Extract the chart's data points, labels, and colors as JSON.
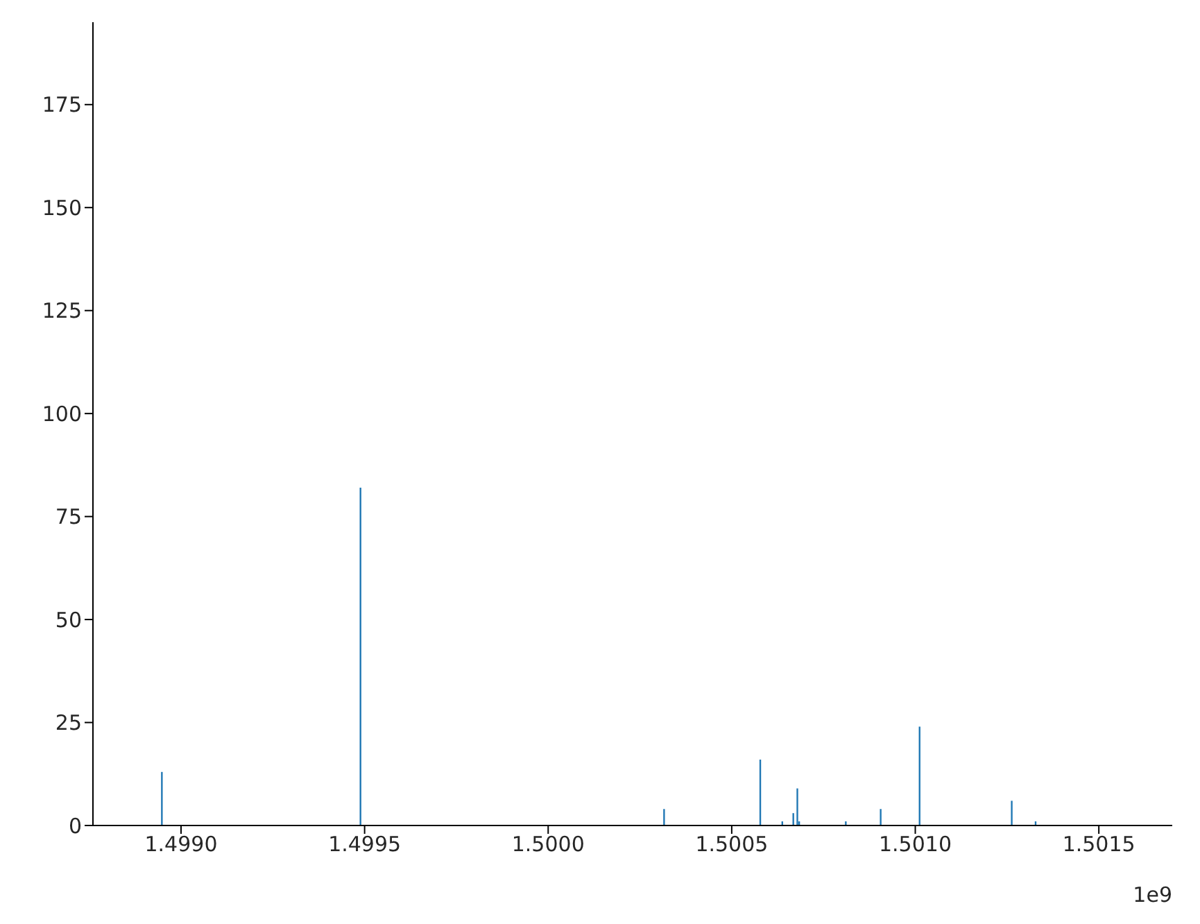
{
  "chart_data": {
    "type": "bar",
    "color": "#1f77b4",
    "x": [
      1.498948,
      1.499489,
      1.500316,
      1.500578,
      1.500638,
      1.500668,
      1.500679,
      1.500684,
      1.500811,
      1.500906,
      1.501012,
      1.501263,
      1.501328
    ],
    "values": [
      13,
      82,
      4,
      16,
      1,
      3,
      9,
      1,
      1,
      4,
      24,
      6,
      1
    ],
    "xlim": [
      1.49876,
      1.5017
    ],
    "xticks": [
      {
        "value": 1.499,
        "label": "1.4990"
      },
      {
        "value": 1.4995,
        "label": "1.4995"
      },
      {
        "value": 1.5,
        "label": "1.5000"
      },
      {
        "value": 1.5005,
        "label": "1.5005"
      },
      {
        "value": 1.501,
        "label": "1.5010"
      },
      {
        "value": 1.5015,
        "label": "1.5015"
      }
    ],
    "ylim": [
      0,
      195
    ],
    "yticks": [
      0,
      25,
      50,
      75,
      100,
      125,
      150,
      175
    ],
    "annotations": [
      "1e9"
    ]
  }
}
